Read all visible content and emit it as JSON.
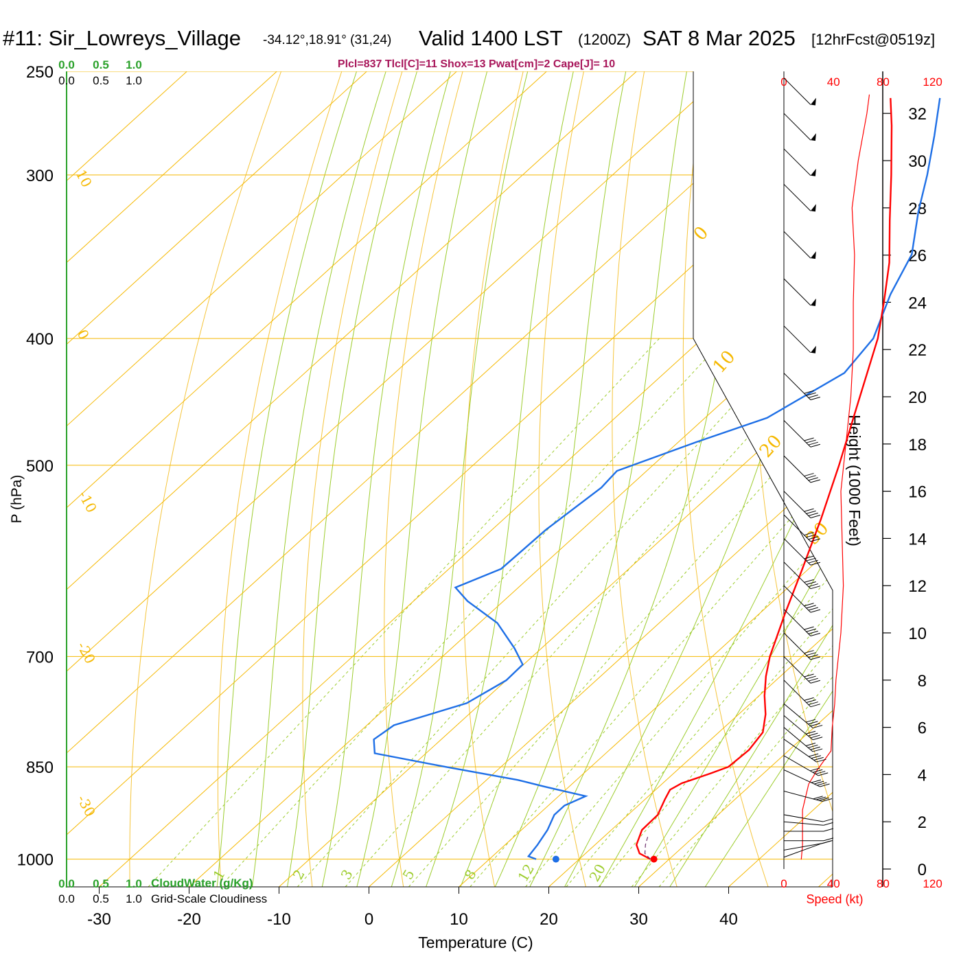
{
  "header": {
    "station": "#11: Sir_Lowreys_Village",
    "coords": "-34.12°,18.91° (31,24)",
    "valid": "Valid 1400 LST",
    "zulu": "(1200Z)",
    "date": "SAT 8 Mar 2025",
    "forecast": "[12hrFcst@0519z]"
  },
  "chart_data": {
    "type": "skew-t sounding",
    "stability_line": "Plcl=837 Tlcl[C]=11 Shox=13 Pwat[cm]=2 Cape[J]= 10",
    "xlabel": "Temperature (C)",
    "ylabel": "P (hPa)",
    "x_ticks": [
      -30,
      -20,
      -10,
      0,
      10,
      20,
      30,
      40
    ],
    "pressure_ticks": [
      250,
      300,
      400,
      500,
      700,
      850,
      1000
    ],
    "pressure_range": [
      1050,
      250
    ],
    "temperature_range_at_bottom": [
      -34,
      34
    ],
    "height_axis": {
      "label": "Height (1000 Feet)",
      "ticks": [
        0,
        2,
        4,
        6,
        8,
        10,
        12,
        14,
        16,
        18,
        20,
        22,
        24,
        26,
        28,
        30,
        32
      ]
    },
    "speed_axis": {
      "label": "Speed (kt)",
      "ticks": [
        0,
        40,
        80,
        120
      ]
    },
    "cloud_water": {
      "label": "CloudWater (g/Kg)",
      "ticks": [
        "0.0",
        "0.5",
        "1.0"
      ]
    },
    "cloudiness": {
      "label": "Grid-Scale Cloudiness",
      "ticks": [
        "0.0",
        "0.5",
        "1.0"
      ]
    },
    "isotherm_labels": [
      "10",
      "0",
      "-10",
      "-20",
      "-30",
      "0",
      "10",
      "20",
      "30"
    ],
    "mixing_ratio_labels": [
      "1",
      "2",
      "3",
      "5",
      "8",
      "12",
      "20"
    ],
    "series": [
      {
        "key": "temperature",
        "color": "#ff0000",
        "points": [
          [
            1000,
            27.9
          ],
          [
            990,
            26.0
          ],
          [
            975,
            24.6
          ],
          [
            950,
            23.4
          ],
          [
            925,
            23.3
          ],
          [
            900,
            22.2
          ],
          [
            885,
            21.6
          ],
          [
            875,
            22.1
          ],
          [
            860,
            24.1
          ],
          [
            850,
            25.3
          ],
          [
            825,
            25.5
          ],
          [
            800,
            24.9
          ],
          [
            775,
            23.0
          ],
          [
            750,
            20.6
          ],
          [
            725,
            18.4
          ],
          [
            700,
            16.4
          ],
          [
            650,
            12.9
          ],
          [
            600,
            9.3
          ],
          [
            550,
            5.3
          ],
          [
            500,
            0.7
          ],
          [
            450,
            -4.6
          ],
          [
            400,
            -10.5
          ],
          [
            375,
            -14.3
          ],
          [
            350,
            -18.5
          ],
          [
            325,
            -23.6
          ],
          [
            300,
            -29.0
          ],
          [
            275,
            -35.0
          ],
          [
            262,
            -38.5
          ]
        ]
      },
      {
        "key": "dewpoint",
        "color": "#1e6fe6",
        "points": [
          [
            1000,
            15.2
          ],
          [
            995,
            14.0
          ],
          [
            975,
            13.6
          ],
          [
            950,
            12.9
          ],
          [
            925,
            11.8
          ],
          [
            910,
            11.8
          ],
          [
            895,
            13.0
          ],
          [
            880,
            7.2
          ],
          [
            870,
            3.5
          ],
          [
            850,
            -6.2
          ],
          [
            830,
            -15.7
          ],
          [
            810,
            -17.5
          ],
          [
            790,
            -17.0
          ],
          [
            760,
            -11.6
          ],
          [
            730,
            -10.0
          ],
          [
            710,
            -10.1
          ],
          [
            690,
            -13.0
          ],
          [
            660,
            -18.0
          ],
          [
            635,
            -24.0
          ],
          [
            620,
            -27.0
          ],
          [
            600,
            -24.2
          ],
          [
            560,
            -24.0
          ],
          [
            520,
            -23.0
          ],
          [
            505,
            -23.3
          ],
          [
            480,
            -18.0
          ],
          [
            460,
            -13.1
          ],
          [
            425,
            -10.0
          ],
          [
            400,
            -11.0
          ],
          [
            370,
            -14.5
          ],
          [
            345,
            -17.0
          ],
          [
            320,
            -21.5
          ],
          [
            300,
            -25.0
          ],
          [
            280,
            -29.0
          ],
          [
            262,
            -33.0
          ]
        ]
      },
      {
        "key": "wind_speed_kt",
        "color": "#ff0000",
        "points": [
          [
            0.4,
            14
          ],
          [
            1.0,
            15
          ],
          [
            2.5,
            15
          ],
          [
            3.6,
            20
          ],
          [
            4.2,
            27
          ],
          [
            5.0,
            38
          ],
          [
            6.0,
            39
          ],
          [
            7.0,
            41
          ],
          [
            8.0,
            42
          ],
          [
            9.0,
            44
          ],
          [
            10.0,
            46
          ],
          [
            12.0,
            48
          ],
          [
            14.0,
            47
          ],
          [
            16.0,
            46
          ],
          [
            18.0,
            50
          ],
          [
            20.0,
            54
          ],
          [
            22.0,
            56
          ],
          [
            24.0,
            56
          ],
          [
            26.0,
            57
          ],
          [
            28.0,
            55
          ],
          [
            30.0,
            60
          ],
          [
            32.0,
            67
          ],
          [
            32.8,
            69
          ]
        ]
      }
    ],
    "parcel": [
      [
        1000,
        27.9
      ],
      [
        990,
        26.6
      ],
      [
        975,
        25.6
      ],
      [
        960,
        24.8
      ]
    ],
    "surface_dewpoint": [
      1000,
      17.4
    ],
    "surface_temperature": [
      1000,
      28.3
    ],
    "wind_barbs": [
      [
        -6.3,
        0.5,
        250
      ],
      [
        -6.3,
        0.8,
        260
      ],
      [
        -6.3,
        1.2,
        270
      ],
      [
        -6.3,
        1.6,
        270
      ],
      [
        -6.3,
        2.0,
        275
      ],
      [
        -6.3,
        2.3,
        280
      ],
      [
        -6.3,
        3.3,
        285
      ],
      [
        -6.3,
        4.2,
        295
      ],
      [
        -6.3,
        4.8,
        300
      ],
      [
        -6.3,
        5.5,
        305
      ],
      [
        -6.3,
        6.0,
        310
      ],
      [
        -6.3,
        6.5,
        310
      ],
      [
        -6.3,
        7.0,
        310
      ],
      [
        -6.3,
        8.0,
        315
      ],
      [
        -6.3,
        9.0,
        315
      ],
      [
        -6.3,
        10.0,
        315
      ],
      [
        -6.3,
        11.0,
        315
      ],
      [
        -6.3,
        12.0,
        315
      ],
      [
        -6.3,
        13.0,
        315
      ],
      [
        -6.3,
        14.0,
        315
      ],
      [
        -6.3,
        15.0,
        315
      ],
      [
        -6.3,
        16.0,
        315
      ],
      [
        -6.3,
        17.5,
        315
      ],
      [
        -6.3,
        19.0,
        315
      ],
      [
        -6.3,
        21.0,
        315
      ],
      [
        -6.3,
        23.0,
        315
      ],
      [
        -6.3,
        25.0,
        315
      ],
      [
        -6.3,
        27.0,
        315
      ],
      [
        -6.3,
        29.0,
        315
      ],
      [
        -6.3,
        30.5,
        315
      ],
      [
        -6.3,
        32.0,
        315
      ],
      [
        -6.3,
        33.5,
        315
      ]
    ]
  }
}
